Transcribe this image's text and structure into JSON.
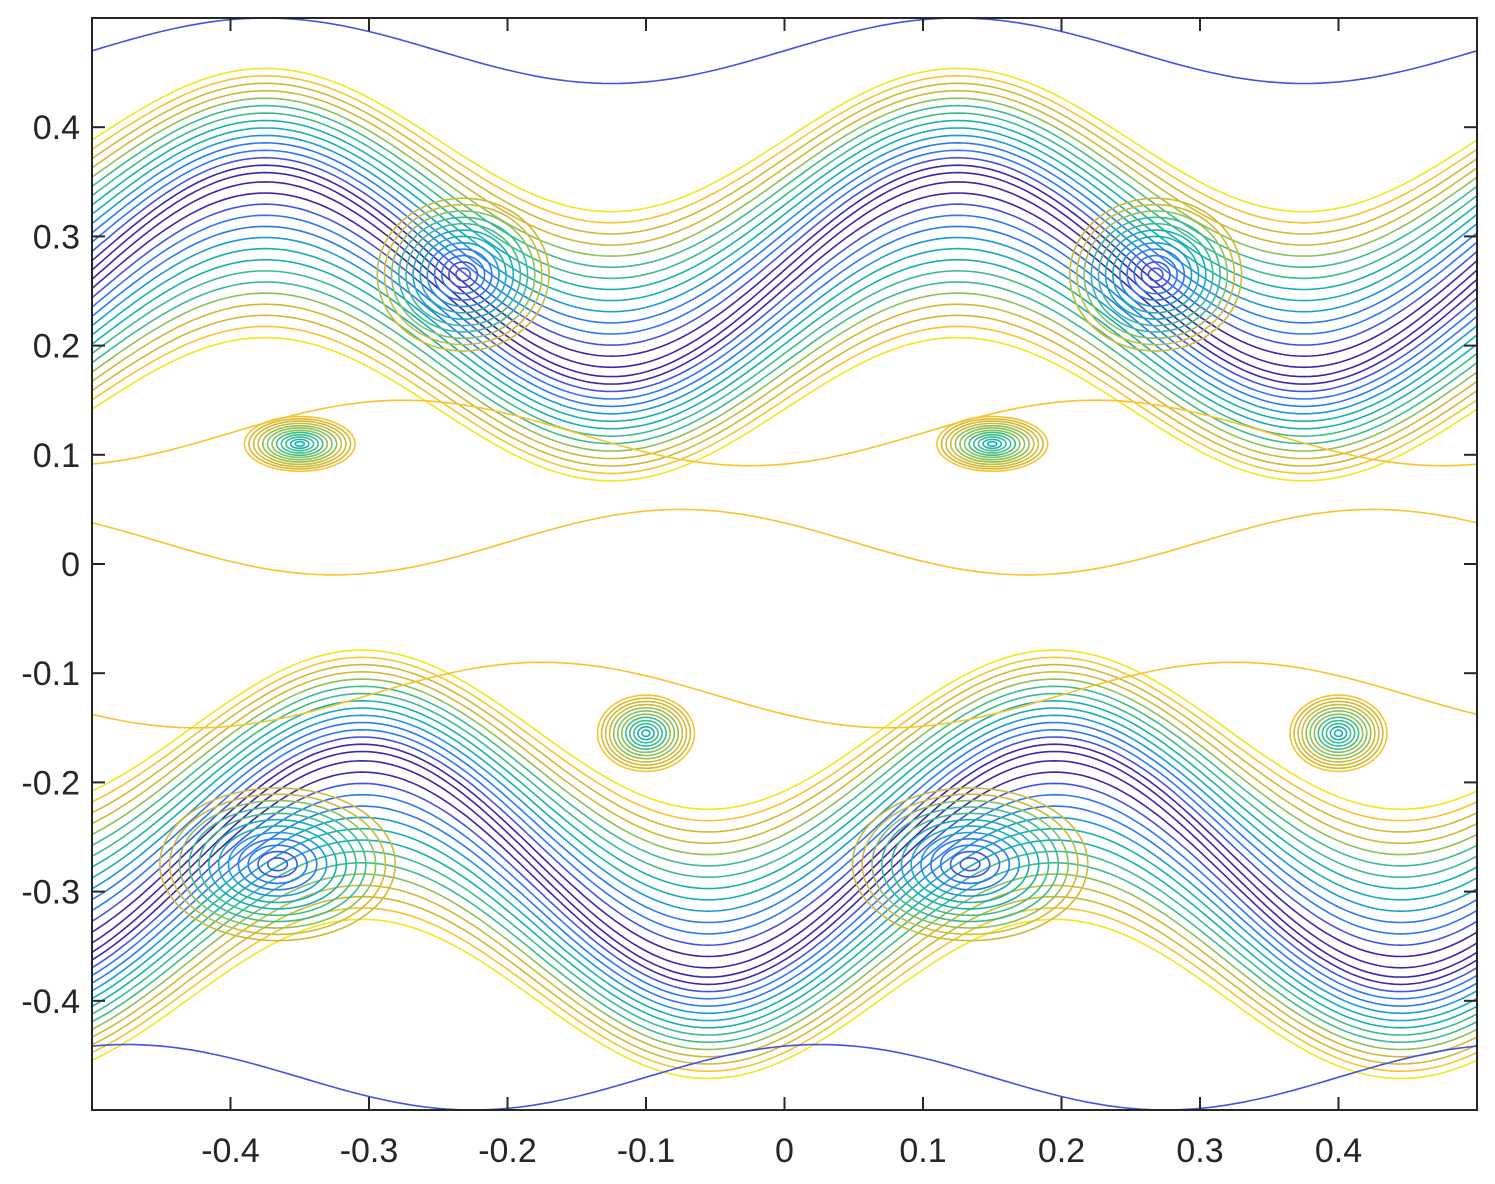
{
  "chart_data": {
    "type": "contour",
    "title": "",
    "xlabel": "",
    "ylabel": "",
    "xlim": [
      -0.5,
      0.5
    ],
    "ylim": [
      -0.5,
      0.5
    ],
    "x_ticks": [
      -0.4,
      -0.3,
      -0.2,
      -0.1,
      0,
      0.1,
      0.2,
      0.3,
      0.4
    ],
    "x_tick_labels": [
      "-0.4",
      "-0.3",
      "-0.2",
      "-0.1",
      "0",
      "0.1",
      "0.2",
      "0.3",
      "0.4"
    ],
    "y_ticks": [
      0.4,
      0.3,
      0.2,
      0.1,
      0,
      -0.1,
      -0.2,
      -0.3,
      -0.4
    ],
    "y_tick_labels": [
      "0.4",
      "0.3",
      "0.2",
      "0.1",
      "0",
      "-0.1",
      "-0.2",
      "-0.3",
      "-0.4"
    ],
    "grid": false,
    "box": true,
    "colormap": [
      "#3e26a8",
      "#4353e1",
      "#2b79f3",
      "#1a9ad8",
      "#16b0b4",
      "#3fbc8b",
      "#8dc058",
      "#d0b935",
      "#f9c22f",
      "#f5e51c"
    ],
    "vortices": [
      {
        "x": -0.232,
        "y": 0.265,
        "rx": 0.062,
        "ry": 0.07,
        "max_level": 0.95
      },
      {
        "x": 0.268,
        "y": 0.265,
        "rx": 0.062,
        "ry": 0.07,
        "max_level": 0.95
      },
      {
        "x": -0.366,
        "y": -0.275,
        "rx": 0.085,
        "ry": 0.07,
        "max_level": 0.95
      },
      {
        "x": 0.134,
        "y": -0.275,
        "rx": 0.085,
        "ry": 0.07,
        "max_level": 0.95
      },
      {
        "x": -0.1,
        "y": -0.155,
        "rx": 0.035,
        "ry": 0.035,
        "max_level": 0.55
      },
      {
        "x": 0.4,
        "y": -0.155,
        "rx": 0.035,
        "ry": 0.035,
        "max_level": 0.55
      },
      {
        "x": -0.35,
        "y": 0.11,
        "rx": 0.04,
        "ry": 0.025,
        "max_level": 0.55
      },
      {
        "x": 0.15,
        "y": 0.11,
        "rx": 0.04,
        "ry": 0.025,
        "max_level": 0.55
      }
    ],
    "shear_layers": [
      {
        "y": 0.265,
        "description": "upper rolled-up shear layer"
      },
      {
        "y": -0.275,
        "description": "lower rolled-up shear layer"
      }
    ]
  }
}
